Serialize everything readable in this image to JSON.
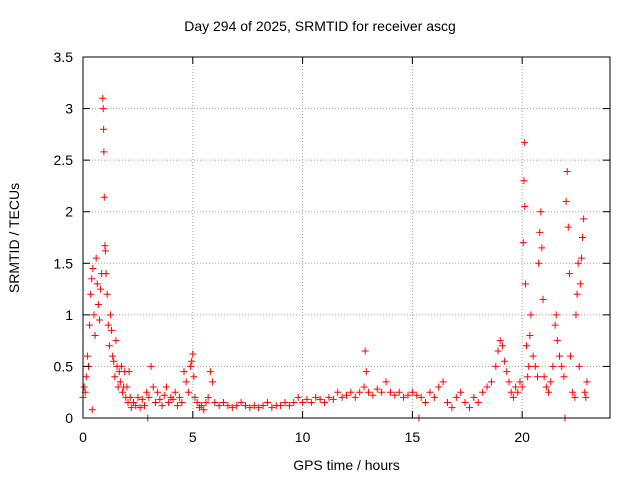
{
  "chart_data": {
    "type": "scatter",
    "title": "Day 294 of 2025, SRMTID for receiver ascg",
    "xlabel": "GPS time / hours",
    "ylabel": "SRMTID / TECUs",
    "xlim": [
      0,
      24
    ],
    "ylim": [
      0,
      3.5
    ],
    "xticks": [
      0,
      5,
      10,
      15,
      20
    ],
    "yticks": [
      0,
      0.5,
      1,
      1.5,
      2,
      2.5,
      3,
      3.5
    ],
    "grid": true,
    "marker": "+",
    "color": "#ff0000",
    "series": [
      {
        "name": "SRMTID",
        "points": [
          [
            0.0,
            0.2
          ],
          [
            0.05,
            0.3
          ],
          [
            0.1,
            0.25
          ],
          [
            0.15,
            0.4
          ],
          [
            0.2,
            0.6
          ],
          [
            0.25,
            0.5
          ],
          [
            0.3,
            0.9
          ],
          [
            0.35,
            1.2
          ],
          [
            0.4,
            1.35
          ],
          [
            0.42,
            0.08
          ],
          [
            0.45,
            1.45
          ],
          [
            0.5,
            1.0
          ],
          [
            0.55,
            0.8
          ],
          [
            0.6,
            1.55
          ],
          [
            0.65,
            1.3
          ],
          [
            0.7,
            1.1
          ],
          [
            0.75,
            0.95
          ],
          [
            0.8,
            1.25
          ],
          [
            0.85,
            1.4
          ],
          [
            0.9,
            3.1
          ],
          [
            0.92,
            3.0
          ],
          [
            0.94,
            2.8
          ],
          [
            0.95,
            2.58
          ],
          [
            0.97,
            2.14
          ],
          [
            1.0,
            1.67
          ],
          [
            1.02,
            1.62
          ],
          [
            1.05,
            1.4
          ],
          [
            1.1,
            1.2
          ],
          [
            1.15,
            0.9
          ],
          [
            1.2,
            0.7
          ],
          [
            1.25,
            1.0
          ],
          [
            1.3,
            0.85
          ],
          [
            1.35,
            0.6
          ],
          [
            1.4,
            0.55
          ],
          [
            1.45,
            0.4
          ],
          [
            1.5,
            0.75
          ],
          [
            1.55,
            0.5
          ],
          [
            1.6,
            0.3
          ],
          [
            1.65,
            0.45
          ],
          [
            1.7,
            0.35
          ],
          [
            1.75,
            0.5
          ],
          [
            1.8,
            0.25
          ],
          [
            1.85,
            0.3
          ],
          [
            1.9,
            0.45
          ],
          [
            1.95,
            0.2
          ],
          [
            2.0,
            0.3
          ],
          [
            2.05,
            0.15
          ],
          [
            2.1,
            0.45
          ],
          [
            2.15,
            0.2
          ],
          [
            2.2,
            0.1
          ],
          [
            2.3,
            0.15
          ],
          [
            2.4,
            0.12
          ],
          [
            2.5,
            0.2
          ],
          [
            2.6,
            0.1
          ],
          [
            2.7,
            0.18
          ],
          [
            2.8,
            0.12
          ],
          [
            2.9,
            0.25
          ],
          [
            2.95,
            0.0
          ],
          [
            3.0,
            0.2
          ],
          [
            3.1,
            0.5
          ],
          [
            3.2,
            0.3
          ],
          [
            3.3,
            0.15
          ],
          [
            3.4,
            0.25
          ],
          [
            3.5,
            0.18
          ],
          [
            3.6,
            0.12
          ],
          [
            3.7,
            0.22
          ],
          [
            3.8,
            0.3
          ],
          [
            3.9,
            0.15
          ],
          [
            4.0,
            0.2
          ],
          [
            4.1,
            0.18
          ],
          [
            4.2,
            0.25
          ],
          [
            4.3,
            0.12
          ],
          [
            4.4,
            0.2
          ],
          [
            4.5,
            0.15
          ],
          [
            4.6,
            0.45
          ],
          [
            4.7,
            0.35
          ],
          [
            4.8,
            0.25
          ],
          [
            4.9,
            0.5
          ],
          [
            4.95,
            0.55
          ],
          [
            5.0,
            0.62
          ],
          [
            5.05,
            0.4
          ],
          [
            5.1,
            0.2
          ],
          [
            5.2,
            0.15
          ],
          [
            5.3,
            0.1
          ],
          [
            5.4,
            0.12
          ],
          [
            5.5,
            0.08
          ],
          [
            5.6,
            0.15
          ],
          [
            5.7,
            0.2
          ],
          [
            5.8,
            0.45
          ],
          [
            5.9,
            0.35
          ],
          [
            6.0,
            0.15
          ],
          [
            6.2,
            0.12
          ],
          [
            6.4,
            0.15
          ],
          [
            6.6,
            0.12
          ],
          [
            6.8,
            0.1
          ],
          [
            7.0,
            0.12
          ],
          [
            7.2,
            0.15
          ],
          [
            7.4,
            0.12
          ],
          [
            7.6,
            0.1
          ],
          [
            7.8,
            0.12
          ],
          [
            8.0,
            0.1
          ],
          [
            8.2,
            0.12
          ],
          [
            8.4,
            0.15
          ],
          [
            8.6,
            0.1
          ],
          [
            8.8,
            0.12
          ],
          [
            9.0,
            0.12
          ],
          [
            9.2,
            0.15
          ],
          [
            9.4,
            0.12
          ],
          [
            9.6,
            0.15
          ],
          [
            9.8,
            0.2
          ],
          [
            10.0,
            0.15
          ],
          [
            10.2,
            0.18
          ],
          [
            10.4,
            0.15
          ],
          [
            10.6,
            0.2
          ],
          [
            10.8,
            0.18
          ],
          [
            11.0,
            0.15
          ],
          [
            11.2,
            0.2
          ],
          [
            11.4,
            0.18
          ],
          [
            11.6,
            0.25
          ],
          [
            11.8,
            0.2
          ],
          [
            12.0,
            0.22
          ],
          [
            12.2,
            0.25
          ],
          [
            12.4,
            0.2
          ],
          [
            12.6,
            0.25
          ],
          [
            12.8,
            0.3
          ],
          [
            12.85,
            0.65
          ],
          [
            12.9,
            0.45
          ],
          [
            13.0,
            0.25
          ],
          [
            13.2,
            0.22
          ],
          [
            13.4,
            0.28
          ],
          [
            13.6,
            0.25
          ],
          [
            13.8,
            0.35
          ],
          [
            14.0,
            0.25
          ],
          [
            14.2,
            0.22
          ],
          [
            14.4,
            0.25
          ],
          [
            14.6,
            0.2
          ],
          [
            14.8,
            0.22
          ],
          [
            15.0,
            0.25
          ],
          [
            15.2,
            0.22
          ],
          [
            15.3,
            0.0
          ],
          [
            15.4,
            0.2
          ],
          [
            15.6,
            0.15
          ],
          [
            15.8,
            0.25
          ],
          [
            16.0,
            0.2
          ],
          [
            16.2,
            0.3
          ],
          [
            16.4,
            0.35
          ],
          [
            16.6,
            0.15
          ],
          [
            16.8,
            0.1
          ],
          [
            17.0,
            0.2
          ],
          [
            17.2,
            0.25
          ],
          [
            17.4,
            0.15
          ],
          [
            17.6,
            0.1
          ],
          [
            17.8,
            0.2
          ],
          [
            18.0,
            0.15
          ],
          [
            18.2,
            0.25
          ],
          [
            18.4,
            0.3
          ],
          [
            18.6,
            0.35
          ],
          [
            18.8,
            0.5
          ],
          [
            18.9,
            0.65
          ],
          [
            19.0,
            0.75
          ],
          [
            19.1,
            0.7
          ],
          [
            19.2,
            0.55
          ],
          [
            19.3,
            0.45
          ],
          [
            19.4,
            0.35
          ],
          [
            19.5,
            0.25
          ],
          [
            19.6,
            0.2
          ],
          [
            19.7,
            0.3
          ],
          [
            19.8,
            0.25
          ],
          [
            19.9,
            0.35
          ],
          [
            20.0,
            0.3
          ],
          [
            20.05,
            1.7
          ],
          [
            20.08,
            2.3
          ],
          [
            20.1,
            2.67
          ],
          [
            20.12,
            2.05
          ],
          [
            20.15,
            1.3
          ],
          [
            20.2,
            0.7
          ],
          [
            20.25,
            0.4
          ],
          [
            20.3,
            0.5
          ],
          [
            20.35,
            0.8
          ],
          [
            20.4,
            1.0
          ],
          [
            20.5,
            0.6
          ],
          [
            20.6,
            0.5
          ],
          [
            20.7,
            0.4
          ],
          [
            20.75,
            1.5
          ],
          [
            20.8,
            1.8
          ],
          [
            20.85,
            2.0
          ],
          [
            20.9,
            1.65
          ],
          [
            20.95,
            1.15
          ],
          [
            21.0,
            0.4
          ],
          [
            21.1,
            0.3
          ],
          [
            21.2,
            0.25
          ],
          [
            21.3,
            0.35
          ],
          [
            21.4,
            0.5
          ],
          [
            21.5,
            0.9
          ],
          [
            21.55,
            1.0
          ],
          [
            21.6,
            0.75
          ],
          [
            21.7,
            0.6
          ],
          [
            21.8,
            0.5
          ],
          [
            21.9,
            0.4
          ],
          [
            21.95,
            0.0
          ],
          [
            22.0,
            2.1
          ],
          [
            22.05,
            2.39
          ],
          [
            22.1,
            1.85
          ],
          [
            22.15,
            1.4
          ],
          [
            22.2,
            0.6
          ],
          [
            22.3,
            0.25
          ],
          [
            22.4,
            0.2
          ],
          [
            22.45,
            1.0
          ],
          [
            22.5,
            1.2
          ],
          [
            22.55,
            1.5
          ],
          [
            22.6,
            0.5
          ],
          [
            22.65,
            1.3
          ],
          [
            22.7,
            1.55
          ],
          [
            22.75,
            1.75
          ],
          [
            22.8,
            1.93
          ],
          [
            22.85,
            0.25
          ],
          [
            22.9,
            0.2
          ],
          [
            22.95,
            0.35
          ]
        ]
      }
    ]
  }
}
